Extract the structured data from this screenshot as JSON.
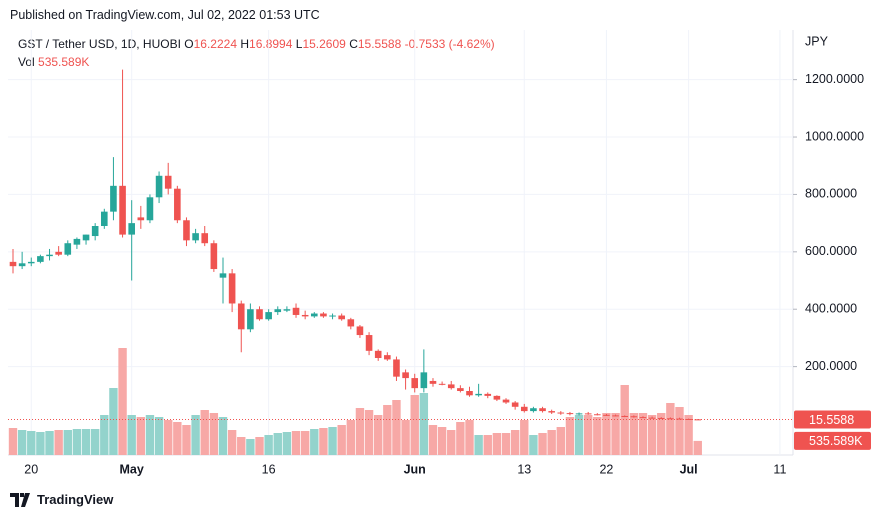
{
  "header": {
    "published": "Published on TradingView.com, Jul 02, 2022 01:53 UTC",
    "symbol": "GST / Tether USD, 1D, HUOBI",
    "ohlc_letters": [
      "O",
      "H",
      "L",
      "C"
    ],
    "change": "-0.7533 (-4.62%)",
    "vol_label": "Vol",
    "currency": "JPY",
    "brand": "TradingView"
  },
  "chart_data": {
    "type": "candlestick",
    "x": [
      "2022-04-18",
      "2022-04-19",
      "2022-04-20",
      "2022-04-21",
      "2022-04-22",
      "2022-04-23",
      "2022-04-24",
      "2022-04-25",
      "2022-04-26",
      "2022-04-27",
      "2022-04-28",
      "2022-04-29",
      "2022-04-30",
      "2022-05-01",
      "2022-05-02",
      "2022-05-03",
      "2022-05-04",
      "2022-05-05",
      "2022-05-06",
      "2022-05-07",
      "2022-05-08",
      "2022-05-09",
      "2022-05-10",
      "2022-05-11",
      "2022-05-12",
      "2022-05-13",
      "2022-05-14",
      "2022-05-15",
      "2022-05-16",
      "2022-05-17",
      "2022-05-18",
      "2022-05-19",
      "2022-05-20",
      "2022-05-21",
      "2022-05-22",
      "2022-05-23",
      "2022-05-24",
      "2022-05-25",
      "2022-05-26",
      "2022-05-27",
      "2022-05-28",
      "2022-05-29",
      "2022-05-30",
      "2022-05-31",
      "2022-06-01",
      "2022-06-02",
      "2022-06-03",
      "2022-06-04",
      "2022-06-05",
      "2022-06-06",
      "2022-06-07",
      "2022-06-08",
      "2022-06-09",
      "2022-06-10",
      "2022-06-11",
      "2022-06-12",
      "2022-06-13",
      "2022-06-14",
      "2022-06-15",
      "2022-06-16",
      "2022-06-17",
      "2022-06-18",
      "2022-06-19",
      "2022-06-20",
      "2022-06-21",
      "2022-06-22",
      "2022-06-23",
      "2022-06-24",
      "2022-06-25",
      "2022-06-26",
      "2022-06-27",
      "2022-06-28",
      "2022-06-29",
      "2022-06-30",
      "2022-07-01",
      "2022-07-02"
    ],
    "open": [
      565,
      550,
      560,
      565,
      585,
      600,
      590,
      625,
      640,
      655,
      690,
      740,
      830,
      660,
      720,
      710,
      790,
      865,
      820,
      710,
      640,
      665,
      630,
      510,
      525,
      420,
      330,
      400,
      365,
      390,
      395,
      405,
      380,
      375,
      385,
      375,
      378,
      365,
      340,
      310,
      255,
      240,
      225,
      180,
      160,
      125,
      150,
      140,
      138,
      125,
      115,
      100,
      105,
      98,
      85,
      75,
      60,
      45,
      55,
      45,
      40,
      38,
      35,
      37,
      34,
      32,
      30,
      28,
      27,
      24,
      22,
      21,
      20,
      19,
      17.5,
      16.2224
    ],
    "high": [
      610,
      600,
      580,
      590,
      610,
      620,
      640,
      650,
      660,
      700,
      750,
      930,
      1235,
      780,
      760,
      800,
      880,
      910,
      830,
      720,
      680,
      690,
      640,
      580,
      540,
      430,
      420,
      410,
      400,
      410,
      410,
      420,
      395,
      390,
      390,
      385,
      385,
      370,
      345,
      320,
      260,
      250,
      235,
      190,
      175,
      260,
      160,
      148,
      150,
      135,
      130,
      140,
      110,
      100,
      90,
      80,
      70,
      60,
      60,
      50,
      45,
      42,
      40,
      42,
      38,
      35,
      33,
      30,
      30,
      27,
      26,
      24,
      23,
      22,
      19,
      16.8994
    ],
    "low": [
      525,
      540,
      550,
      560,
      570,
      585,
      585,
      610,
      625,
      640,
      680,
      710,
      650,
      500,
      680,
      700,
      770,
      800,
      700,
      620,
      630,
      620,
      530,
      420,
      390,
      250,
      320,
      360,
      360,
      380,
      390,
      370,
      365,
      370,
      370,
      365,
      360,
      330,
      300,
      240,
      220,
      220,
      150,
      120,
      110,
      110,
      130,
      135,
      120,
      110,
      95,
      95,
      90,
      80,
      70,
      50,
      40,
      40,
      40,
      35,
      32,
      30,
      30,
      32,
      30,
      28,
      27,
      24,
      22,
      21,
      20,
      19,
      18,
      17,
      16,
      15.2609
    ],
    "close": [
      550,
      560,
      565,
      585,
      590,
      590,
      630,
      645,
      660,
      690,
      740,
      830,
      660,
      700,
      710,
      790,
      865,
      820,
      710,
      640,
      665,
      630,
      540,
      525,
      420,
      330,
      400,
      365,
      390,
      400,
      400,
      380,
      375,
      385,
      375,
      378,
      365,
      340,
      310,
      255,
      230,
      225,
      165,
      160,
      125,
      180,
      140,
      138,
      125,
      115,
      100,
      105,
      98,
      85,
      75,
      60,
      45,
      55,
      45,
      40,
      38,
      35,
      37,
      34,
      32,
      30,
      28,
      27,
      24,
      22,
      21,
      20,
      19,
      18,
      16.3,
      15.5588
    ],
    "volume": {
      "values": [
        1026000,
        950000,
        912000,
        874000,
        912000,
        950000,
        950000,
        988000,
        988000,
        988000,
        1520000,
        2546000,
        4066000,
        1520000,
        1444000,
        1520000,
        1444000,
        1330000,
        1254000,
        1140000,
        1520000,
        1710000,
        1596000,
        1444000,
        950000,
        684000,
        608000,
        684000,
        760000,
        836000,
        874000,
        912000,
        912000,
        988000,
        1026000,
        1064000,
        1140000,
        1330000,
        1786000,
        1710000,
        1520000,
        1900000,
        2090000,
        1330000,
        2280000,
        2356000,
        1140000,
        1064000,
        950000,
        1254000,
        1330000,
        760000,
        760000,
        836000,
        836000,
        950000,
        1330000,
        760000,
        836000,
        950000,
        1064000,
        1444000,
        1520000,
        1520000,
        1444000,
        1596000,
        1596000,
        2660000,
        1596000,
        1596000,
        1520000,
        1596000,
        1976000,
        1824000,
        1520000,
        535589
      ],
      "value_labels": [
        null,
        null,
        null,
        null,
        null,
        null,
        null,
        null,
        null,
        null,
        null,
        null,
        null,
        null,
        null,
        null,
        null,
        null,
        null,
        null,
        null,
        null,
        null,
        null,
        null,
        null,
        null,
        null,
        null,
        null,
        null,
        null,
        null,
        null,
        null,
        null,
        null,
        null,
        null,
        null,
        null,
        null,
        null,
        null,
        null,
        null,
        null,
        null,
        null,
        null,
        null,
        null,
        null,
        null,
        null,
        null,
        null,
        null,
        null,
        null,
        null,
        null,
        null,
        null,
        null,
        null,
        null,
        null,
        null,
        null,
        null,
        null,
        null,
        null,
        null,
        "535.589K"
      ]
    },
    "up_color": "#26a69a",
    "down_color": "#ef5350",
    "volume_up_color": "#93d3cc",
    "volume_down_color": "#f7a8a6",
    "ylim": [
      -108,
      1373
    ],
    "yticks": [
      {
        "value": 200,
        "label": "200.0000"
      },
      {
        "value": 400,
        "label": "400.0000"
      },
      {
        "value": 600,
        "label": "600.0000"
      },
      {
        "value": 800,
        "label": "800.0000"
      },
      {
        "value": 1000,
        "label": "1000.0000"
      },
      {
        "value": 1200,
        "label": "1200.0000"
      }
    ],
    "xticks": [
      {
        "value": "2022-04-20",
        "label": "20"
      },
      {
        "value": "2022-05-01",
        "label": "May"
      },
      {
        "value": "2022-05-16",
        "label": "16"
      },
      {
        "value": "2022-06-01",
        "label": "Jun"
      },
      {
        "value": "2022-06-13",
        "label": "13"
      },
      {
        "value": "2022-06-22",
        "label": "22"
      },
      {
        "value": "2022-07-01",
        "label": "Jul"
      },
      {
        "value": "2022-07-11",
        "label": "11"
      }
    ],
    "grid": true
  }
}
